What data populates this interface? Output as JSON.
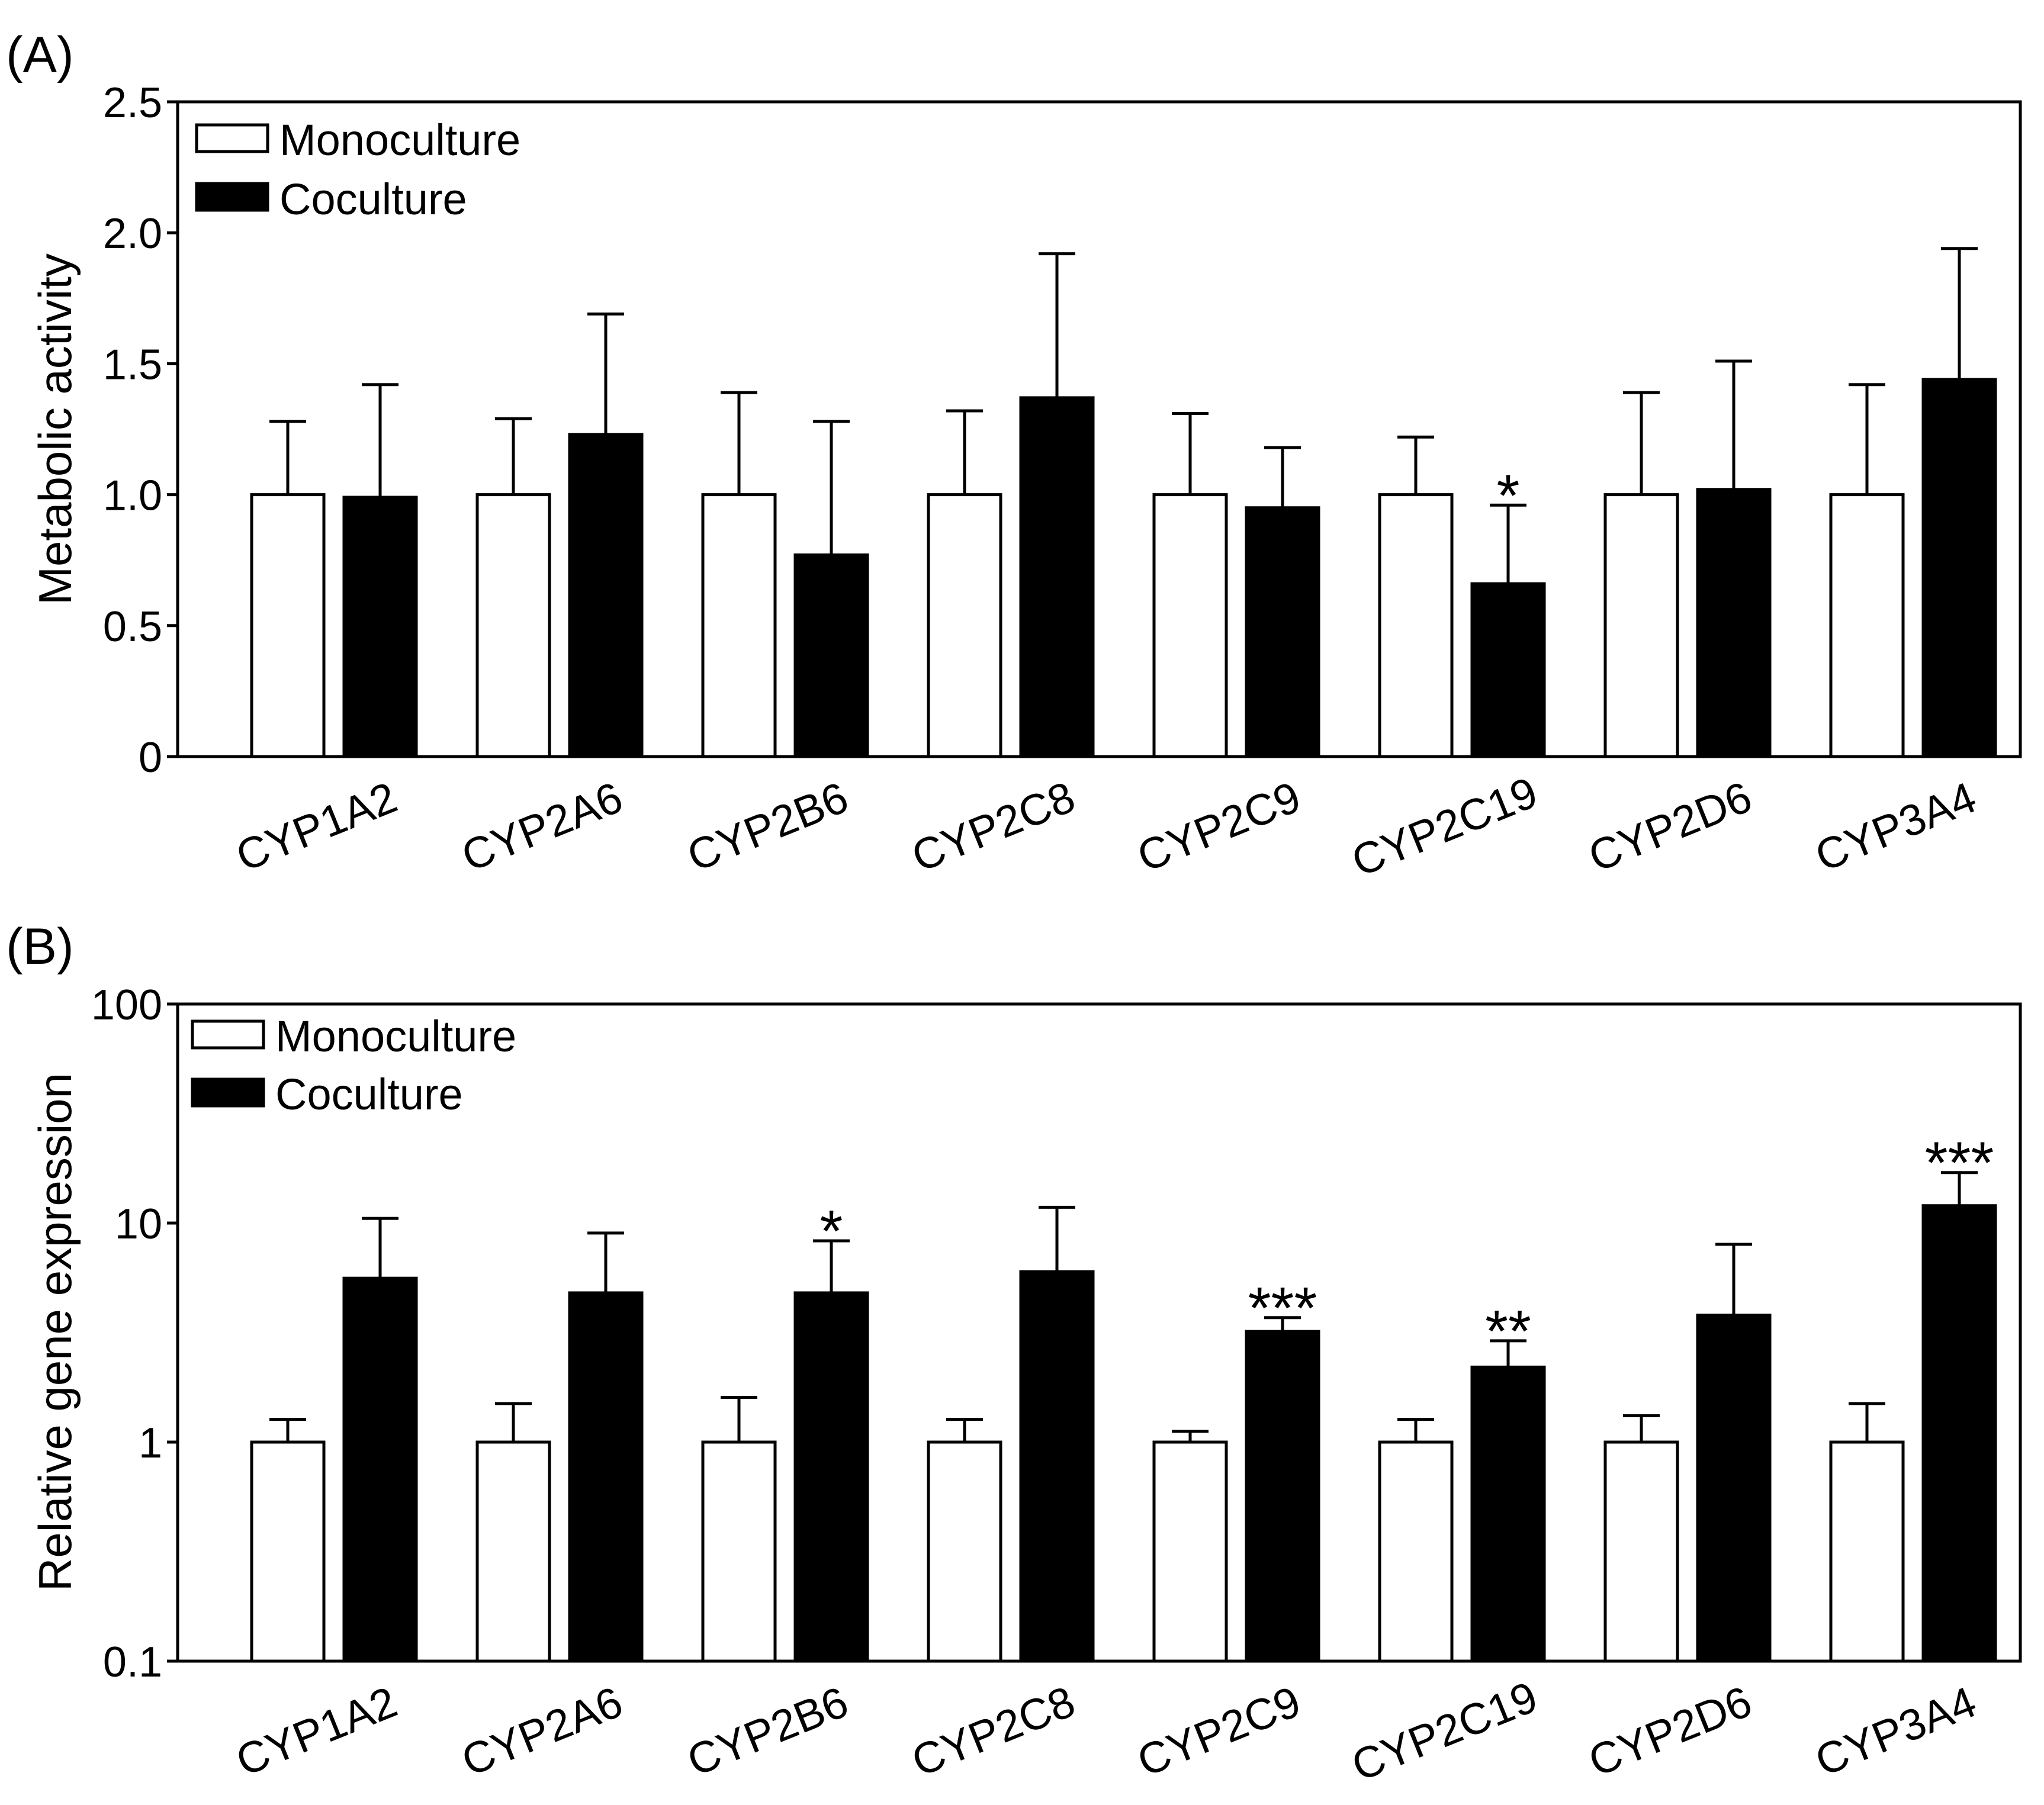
{
  "colors": {
    "mono": "#ffffff",
    "co": "#000000",
    "axis": "#000000"
  },
  "chart_data": [
    {
      "panel_label": "(A)",
      "type": "bar",
      "scale": "linear",
      "ylabel": "Metabolic activity",
      "xlabel": "",
      "ylim": [
        0,
        2.5
      ],
      "yticks": [
        0,
        0.5,
        1.0,
        1.5,
        2.0,
        2.5
      ],
      "ytick_labels": [
        "0",
        "0.5",
        "1.0",
        "1.5",
        "2.0",
        "2.5"
      ],
      "legend_position": "top-left",
      "categories": [
        "CYP1A2",
        "CYP2A6",
        "CYP2B6",
        "CYP2C8",
        "CYP2C9",
        "CYP2C19",
        "CYP2D6",
        "CYP3A4"
      ],
      "series": [
        {
          "name": "Monoculture",
          "values": [
            1.0,
            1.0,
            1.0,
            1.0,
            1.0,
            1.0,
            1.0,
            1.0
          ],
          "errors": [
            0.28,
            0.29,
            0.39,
            0.32,
            0.31,
            0.22,
            0.39,
            0.42
          ],
          "significance": [
            "",
            "",
            "",
            "",
            "",
            "",
            "",
            ""
          ]
        },
        {
          "name": "Coculture",
          "values": [
            0.99,
            1.23,
            0.77,
            1.37,
            0.95,
            0.66,
            1.02,
            1.44
          ],
          "errors": [
            0.43,
            0.46,
            0.51,
            0.55,
            0.23,
            0.3,
            0.49,
            0.5
          ],
          "significance": [
            "",
            "",
            "",
            "",
            "",
            "*",
            "",
            ""
          ]
        }
      ]
    },
    {
      "panel_label": "(B)",
      "type": "bar",
      "scale": "log",
      "ylabel": "Relative gene expression",
      "xlabel": "",
      "ylim": [
        0.1,
        100
      ],
      "yticks": [
        0.1,
        1,
        10,
        100
      ],
      "ytick_labels": [
        "0.1",
        "1",
        "10",
        "100"
      ],
      "legend_position": "top-left",
      "categories": [
        "CYP1A2",
        "CYP2A6",
        "CYP2B6",
        "CYP2C8",
        "CYP2C9",
        "CYP2C19",
        "CYP2D6",
        "CYP3A4"
      ],
      "series": [
        {
          "name": "Monoculture",
          "values": [
            1.0,
            1.0,
            1.0,
            1.0,
            1.0,
            1.0,
            1.0,
            1.0
          ],
          "upper": [
            1.27,
            1.5,
            1.6,
            1.27,
            1.12,
            1.27,
            1.32,
            1.5
          ],
          "significance": [
            "",
            "",
            "",
            "",
            "",
            "",
            "",
            ""
          ]
        },
        {
          "name": "Coculture",
          "values": [
            5.6,
            4.8,
            4.8,
            6.0,
            3.2,
            2.2,
            3.8,
            12.0
          ],
          "upper": [
            10.5,
            9.0,
            8.3,
            11.8,
            3.7,
            2.9,
            8.0,
            17.0
          ],
          "significance": [
            "",
            "",
            "*",
            "",
            "***",
            "**",
            "",
            "***"
          ]
        }
      ]
    }
  ]
}
